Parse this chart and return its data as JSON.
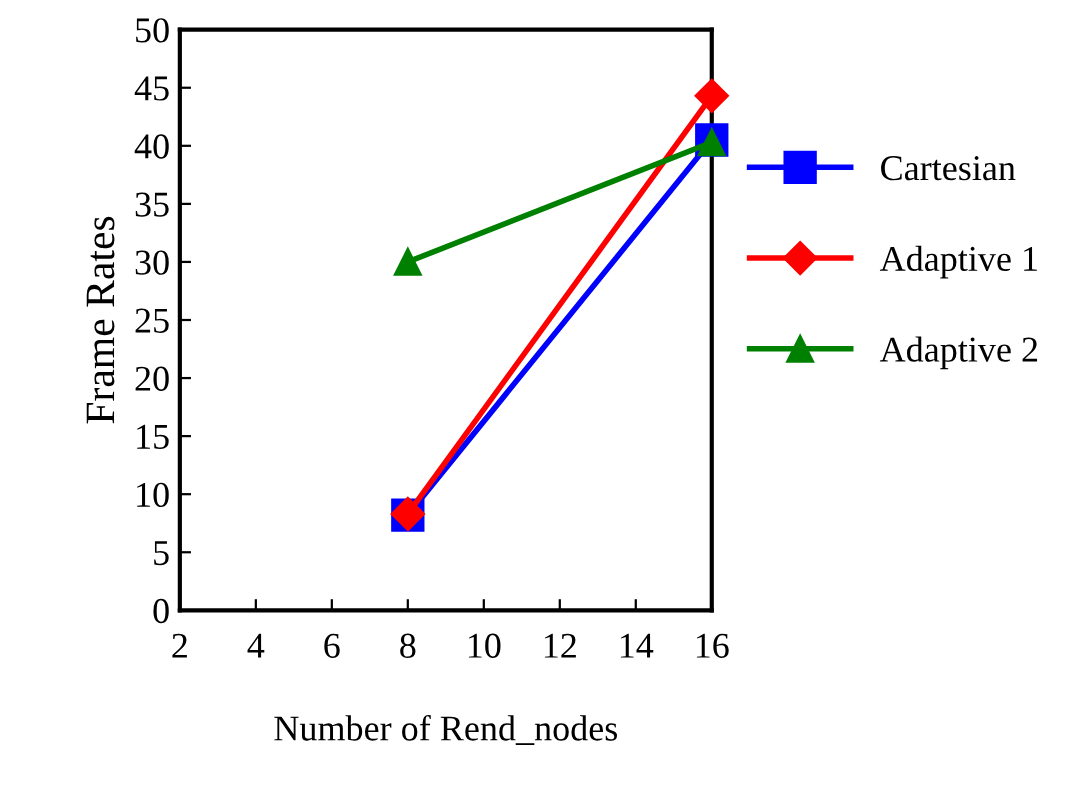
{
  "chart_data": {
    "type": "line",
    "xlabel": "Number of Rend_nodes",
    "ylabel": "Frame Rates",
    "x": [
      8,
      16
    ],
    "series": [
      {
        "name": "Cartesian",
        "color": "#0000ff",
        "values": [
          8.2,
          40.5
        ],
        "marker": "square"
      },
      {
        "name": "Adaptive 1",
        "color": "#ff0000",
        "values": [
          8.3,
          44.3
        ],
        "marker": "diamond"
      },
      {
        "name": "Adaptive 2",
        "color": "#008000",
        "values": [
          30,
          40.3
        ],
        "marker": "triangle"
      }
    ],
    "xlim": [
      2,
      16
    ],
    "xticks": [
      2,
      4,
      6,
      8,
      10,
      12,
      14,
      16
    ],
    "ylim": [
      0,
      50
    ],
    "yticks": [
      0,
      5,
      10,
      15,
      20,
      25,
      30,
      35,
      40,
      45,
      50
    ],
    "legend": "right",
    "grid": false,
    "line_style": "solid"
  }
}
